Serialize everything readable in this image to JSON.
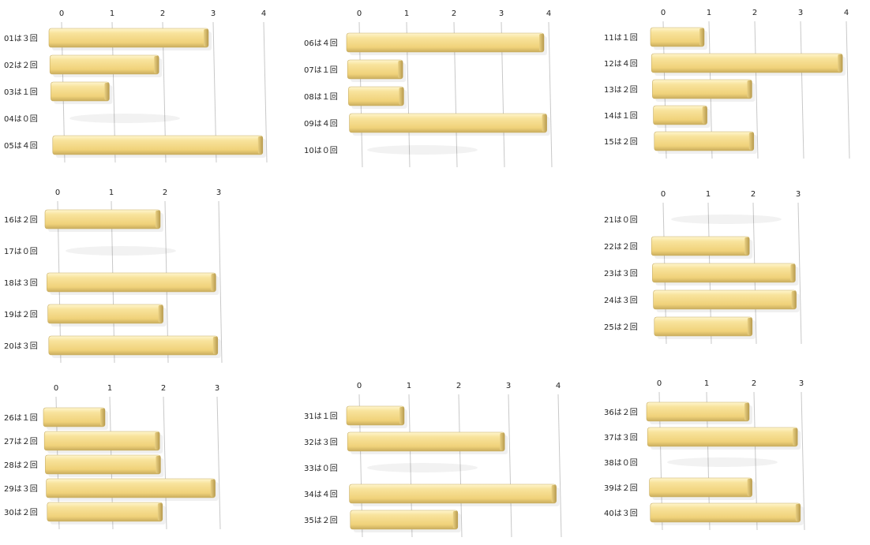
{
  "chart_data": [
    {
      "type": "bar",
      "orientation": "horizontal",
      "title": "",
      "xlim": [
        0,
        4
      ],
      "ticks": [
        "0",
        "1",
        "2",
        "3",
        "4"
      ],
      "categories": [
        "01は３回",
        "02は２回",
        "03は１回",
        "04は０回",
        "05は４回"
      ],
      "values": [
        3,
        2,
        1,
        0,
        4
      ]
    },
    {
      "type": "bar",
      "orientation": "horizontal",
      "title": "",
      "xlim": [
        0,
        4
      ],
      "ticks": [
        "0",
        "1",
        "2",
        "3",
        "4"
      ],
      "categories": [
        "06は４回",
        "07は１回",
        "08は１回",
        "09は４回",
        "10は０回"
      ],
      "values": [
        4,
        1,
        1,
        4,
        0
      ]
    },
    {
      "type": "bar",
      "orientation": "horizontal",
      "title": "",
      "xlim": [
        0,
        4
      ],
      "ticks": [
        "0",
        "1",
        "2",
        "3",
        "4"
      ],
      "categories": [
        "11は１回",
        "12は４回",
        "13は２回",
        "14は１回",
        "15は２回"
      ],
      "values": [
        1,
        4,
        2,
        1,
        2
      ]
    },
    {
      "type": "bar",
      "orientation": "horizontal",
      "title": "",
      "xlim": [
        0,
        3
      ],
      "ticks": [
        "0",
        "1",
        "2",
        "3"
      ],
      "categories": [
        "16は２回",
        "17は０回",
        "18は３回",
        "19は２回",
        "20は３回"
      ],
      "values": [
        2,
        0,
        3,
        2,
        3
      ]
    },
    {
      "type": "bar",
      "orientation": "horizontal",
      "title": "",
      "xlim": [
        0,
        3
      ],
      "ticks": [
        "0",
        "1",
        "2",
        "3"
      ],
      "categories": [
        "21は０回",
        "22は２回",
        "23は３回",
        "24は３回",
        "25は２回"
      ],
      "values": [
        0,
        2,
        3,
        3,
        2
      ]
    },
    {
      "type": "bar",
      "orientation": "horizontal",
      "title": "",
      "xlim": [
        0,
        3
      ],
      "ticks": [
        "0",
        "1",
        "2",
        "3"
      ],
      "categories": [
        "26は１回",
        "27は２回",
        "28は２回",
        "29は３回",
        "30は２回"
      ],
      "values": [
        1,
        2,
        2,
        3,
        2
      ]
    },
    {
      "type": "bar",
      "orientation": "horizontal",
      "title": "",
      "xlim": [
        0,
        4
      ],
      "ticks": [
        "0",
        "1",
        "2",
        "3",
        "4"
      ],
      "categories": [
        "31は１回",
        "32は３回",
        "33は０回",
        "34は４回",
        "35は２回"
      ],
      "values": [
        1,
        3,
        0,
        4,
        2
      ]
    },
    {
      "type": "bar",
      "orientation": "horizontal",
      "title": "",
      "xlim": [
        0,
        3
      ],
      "ticks": [
        "0",
        "1",
        "2",
        "3"
      ],
      "categories": [
        "36は２回",
        "37は３回",
        "38は０回",
        "39は２回",
        "40は３回"
      ],
      "values": [
        2,
        3,
        0,
        2,
        3
      ]
    }
  ],
  "style": {
    "bar_color": "#f4dd8c",
    "bar_top": "#fff3c2",
    "bar_shadow": "#b8a05a",
    "grid_color": "#c8c8c8"
  }
}
